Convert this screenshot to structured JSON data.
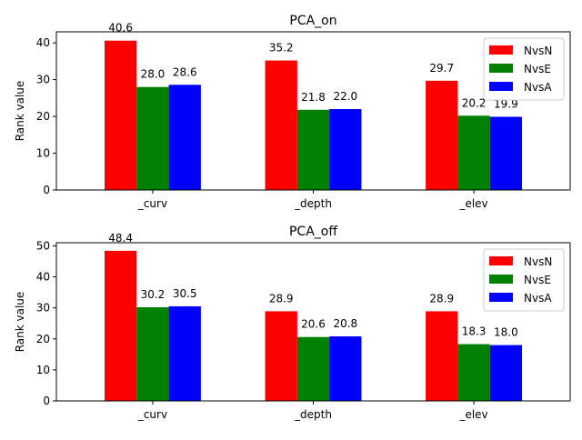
{
  "chart_data": [
    {
      "type": "bar",
      "title": "PCA_on",
      "ylabel": "Rank value",
      "xlabel": "",
      "categories": [
        "_curv",
        "_depth",
        "_elev"
      ],
      "ylim": [
        0,
        43
      ],
      "yticks": [
        0,
        10,
        20,
        30,
        40
      ],
      "legend_position": "top-right",
      "grid": false,
      "series": [
        {
          "name": "NvsN",
          "color": "#ff0000",
          "values": [
            40.6,
            35.2,
            29.7
          ],
          "labels": [
            "40.6",
            "35.2",
            "29.7"
          ]
        },
        {
          "name": "NvsE",
          "color": "#008000",
          "values": [
            28.0,
            21.8,
            20.2
          ],
          "labels": [
            "28.0",
            "21.8",
            "20.2"
          ]
        },
        {
          "name": "NvsA",
          "color": "#0000ff",
          "values": [
            28.6,
            22.0,
            19.9
          ],
          "labels": [
            "28.6",
            "22.0",
            "19.9"
          ]
        }
      ]
    },
    {
      "type": "bar",
      "title": "PCA_off",
      "ylabel": "Rank value",
      "xlabel": "",
      "categories": [
        "_curv",
        "_depth",
        "_elev"
      ],
      "ylim": [
        0,
        51
      ],
      "yticks": [
        0,
        10,
        20,
        30,
        40,
        50
      ],
      "legend_position": "top-right",
      "grid": false,
      "series": [
        {
          "name": "NvsN",
          "color": "#ff0000",
          "values": [
            48.4,
            28.9,
            28.9
          ],
          "labels": [
            "48.4",
            "28.9",
            "28.9"
          ]
        },
        {
          "name": "NvsE",
          "color": "#008000",
          "values": [
            30.2,
            20.6,
            18.3
          ],
          "labels": [
            "30.2",
            "20.6",
            "18.3"
          ]
        },
        {
          "name": "NvsA",
          "color": "#0000ff",
          "values": [
            30.5,
            20.8,
            18.0
          ],
          "labels": [
            "30.5",
            "20.8",
            "18.0"
          ]
        }
      ]
    }
  ]
}
